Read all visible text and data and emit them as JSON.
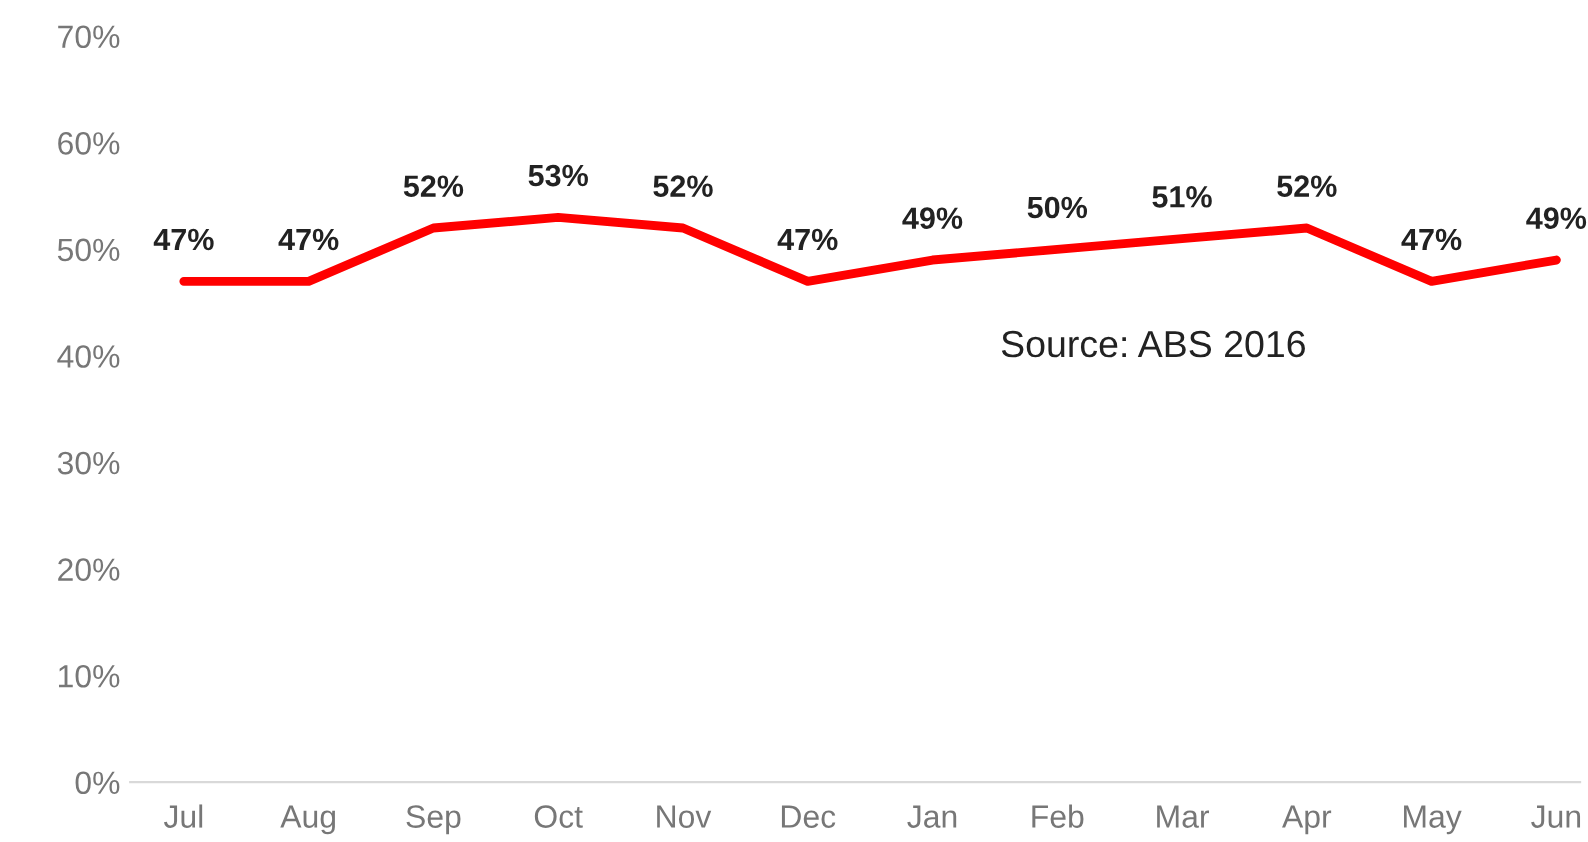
{
  "chart_data": {
    "type": "line",
    "categories": [
      "Jul",
      "Aug",
      "Sep",
      "Oct",
      "Nov",
      "Dec",
      "Jan",
      "Feb",
      "Mar",
      "Apr",
      "May",
      "Jun"
    ],
    "series": [
      {
        "color": "#ff0000",
        "values": [
          47,
          47,
          52,
          53,
          52,
          47,
          49,
          50,
          51,
          52,
          47,
          49
        ]
      }
    ],
    "value_labels": [
      "47%",
      "47%",
      "52%",
      "53%",
      "52%",
      "47%",
      "49%",
      "50%",
      "51%",
      "52%",
      "47%",
      "49%"
    ],
    "ylim": [
      0,
      70
    ],
    "yticks": [
      {
        "value": 0,
        "label": "0%"
      },
      {
        "value": 10,
        "label": "10%"
      },
      {
        "value": 20,
        "label": "20%"
      },
      {
        "value": 30,
        "label": "30%"
      },
      {
        "value": 40,
        "label": "40%"
      },
      {
        "value": 50,
        "label": "50%"
      },
      {
        "value": 60,
        "label": "60%"
      },
      {
        "value": 70,
        "label": "70%"
      }
    ],
    "annotations": [
      "Source: ABS 2016"
    ],
    "grid": false,
    "legend": false,
    "marker": "none",
    "line_style": "solid"
  }
}
